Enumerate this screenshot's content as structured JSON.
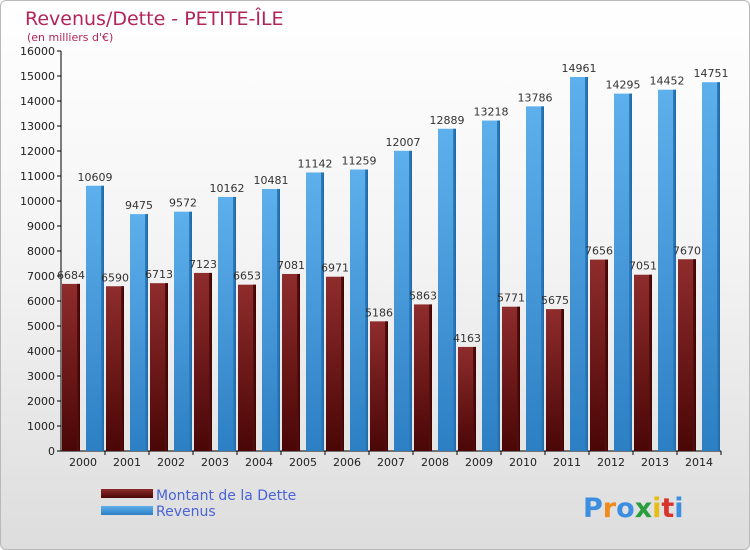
{
  "chart_data": {
    "type": "bar",
    "title": "Revenus/Dette - PETITE-ÎLE",
    "subtitle": "(en milliers d'€)",
    "categories": [
      "2000",
      "2001",
      "2002",
      "2003",
      "2004",
      "2005",
      "2006",
      "2007",
      "2008",
      "2009",
      "2010",
      "2011",
      "2012",
      "2013",
      "2014"
    ],
    "series": [
      {
        "name": "Montant de la Dette",
        "color": "#7a1a1a",
        "values": [
          6684,
          6590,
          6713,
          7123,
          6653,
          7081,
          6971,
          5186,
          5863,
          4163,
          5771,
          5675,
          7656,
          7051,
          7670
        ]
      },
      {
        "name": "Revenus",
        "color": "#4a9ee0",
        "values": [
          10609,
          9475,
          9572,
          10162,
          10481,
          11142,
          11259,
          12007,
          12889,
          13218,
          13786,
          14961,
          14295,
          14452,
          14751
        ]
      }
    ],
    "ylim": [
      0,
      16000
    ],
    "yticks": [
      0,
      1000,
      2000,
      3000,
      4000,
      5000,
      6000,
      7000,
      8000,
      9000,
      10000,
      11000,
      12000,
      13000,
      14000,
      15000,
      16000
    ],
    "grid": false,
    "legend_position": "bottom-left"
  },
  "logo": {
    "text": "Proxiti"
  }
}
